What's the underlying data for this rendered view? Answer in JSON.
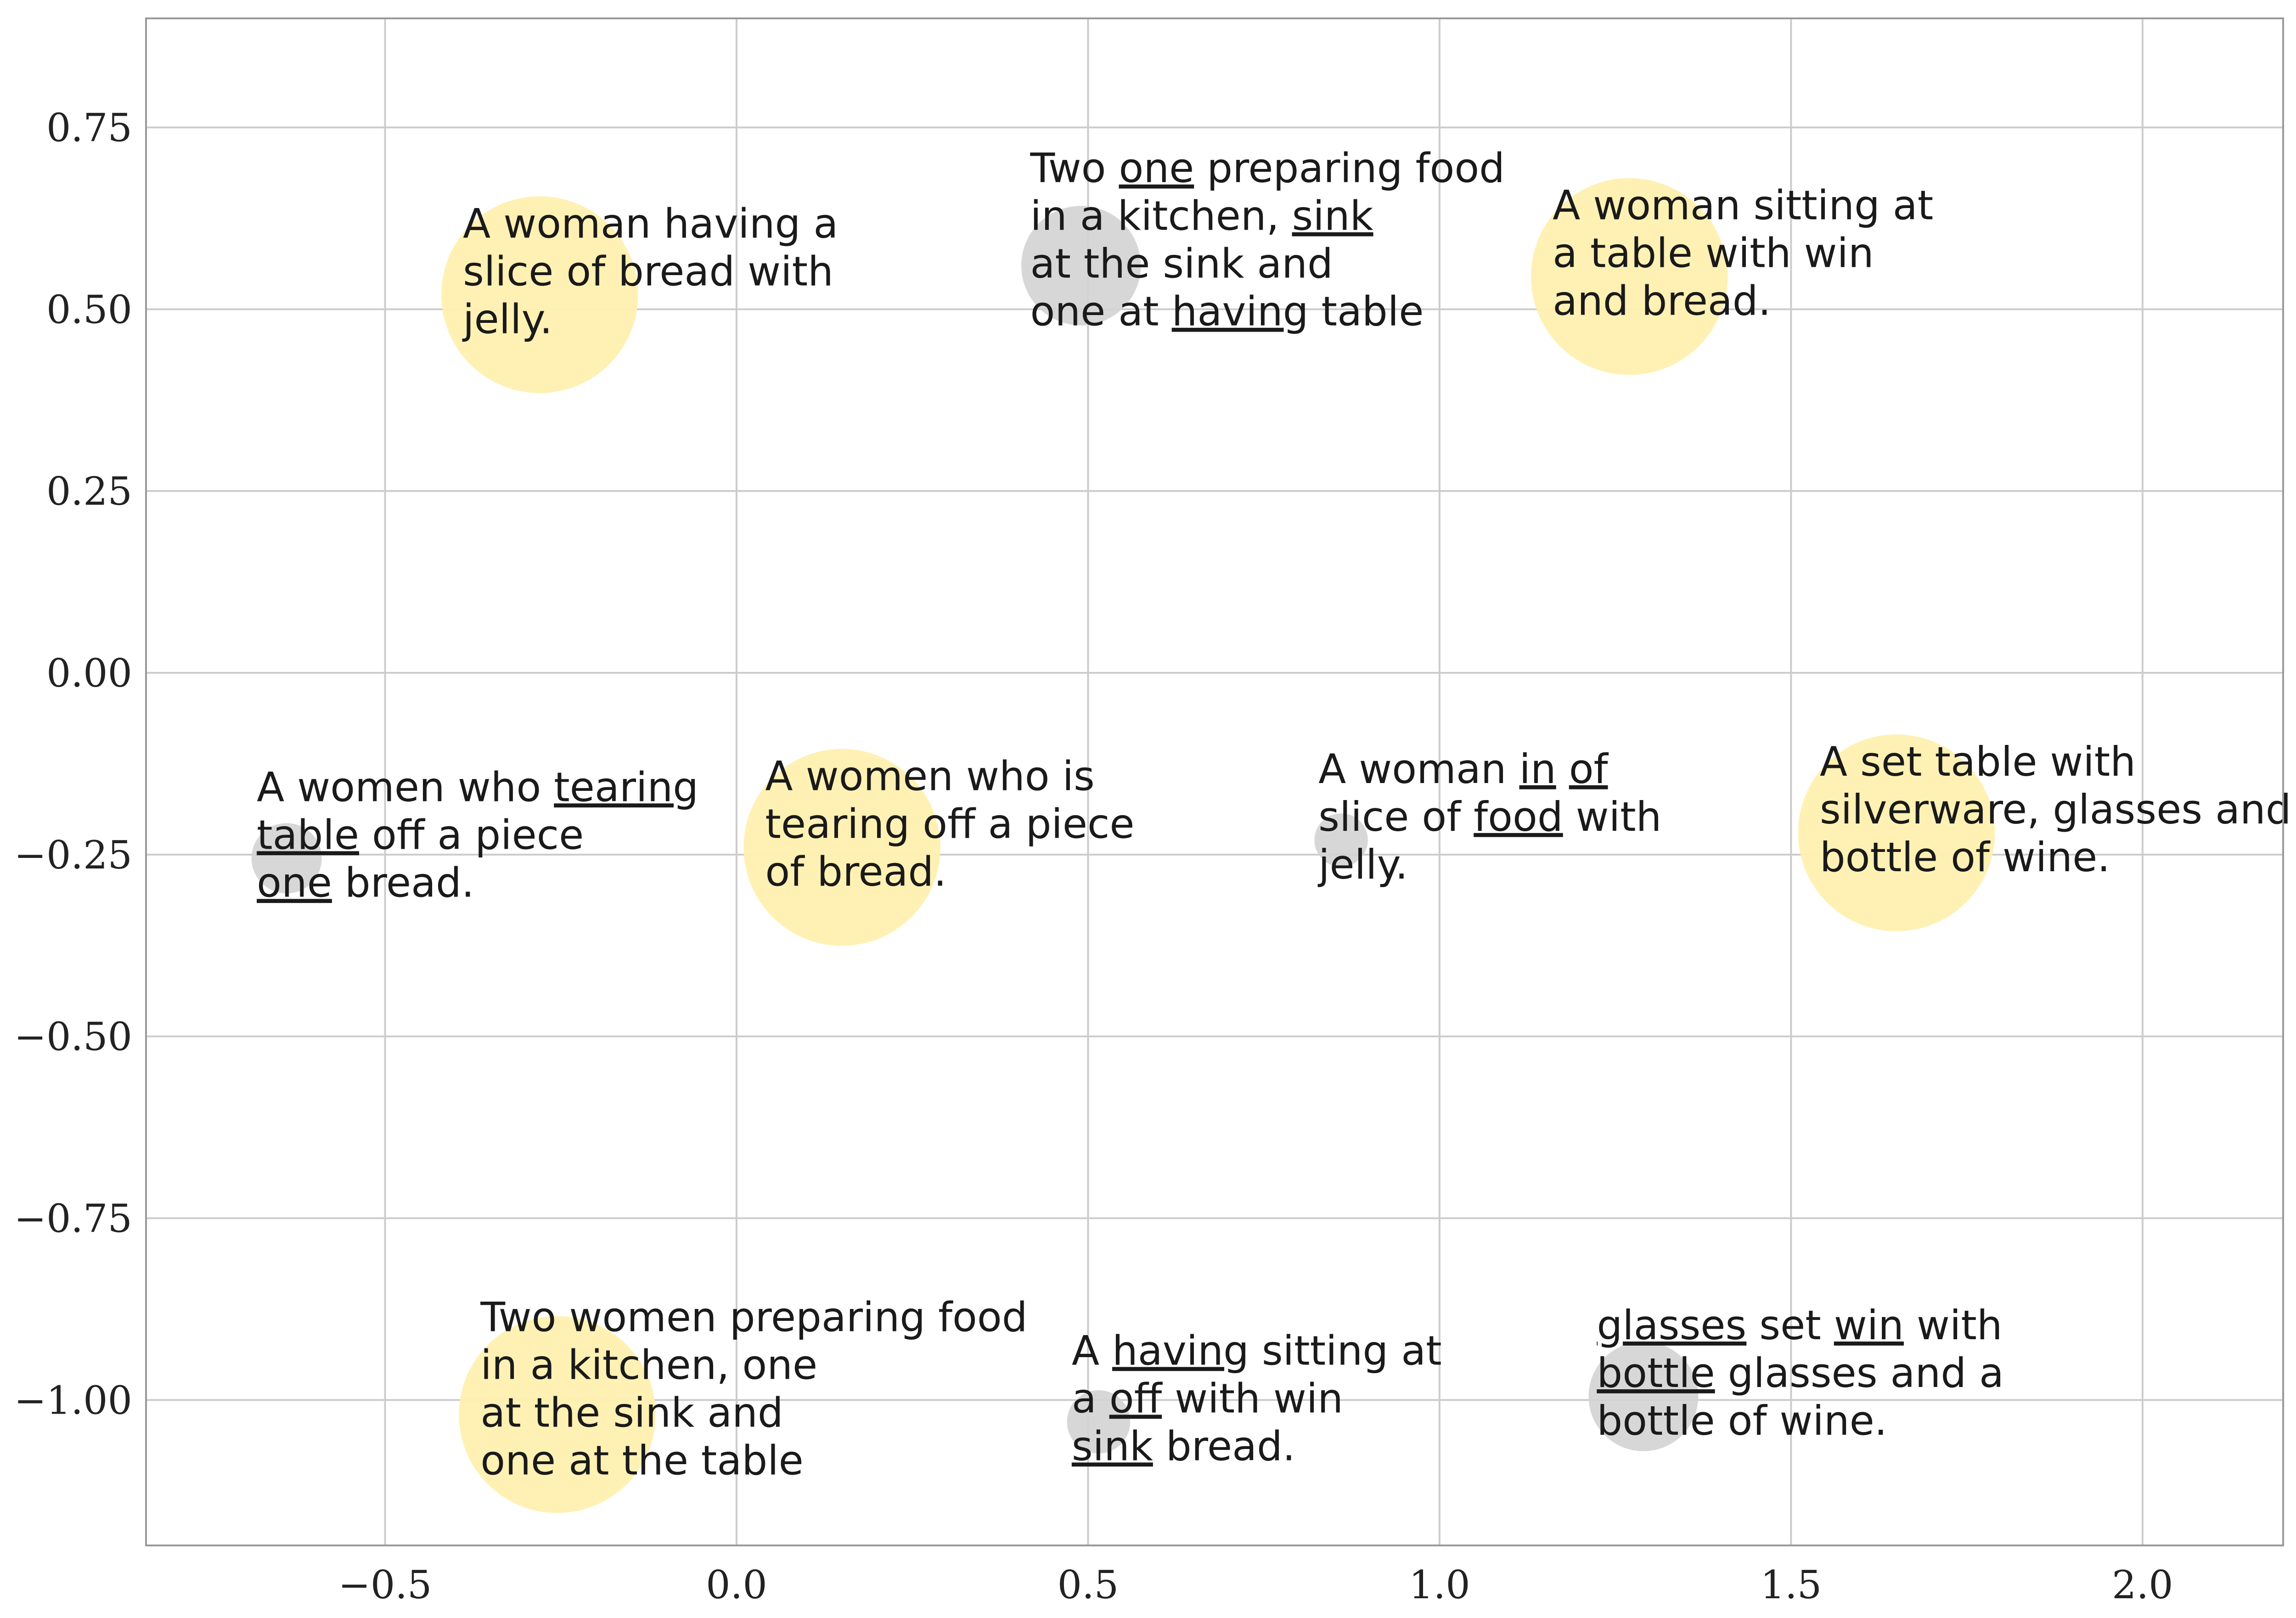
{
  "chart_data": {
    "type": "scatter",
    "title": "",
    "xlabel": "",
    "ylabel": "",
    "xlim": [
      -0.84,
      2.2
    ],
    "ylim": [
      -1.2,
      0.9
    ],
    "grid": true,
    "legend": "none",
    "x_ticks": [
      -0.5,
      0.0,
      0.5,
      1.0,
      1.5,
      2.0
    ],
    "x_tick_labels": [
      "−0.5",
      "0.0",
      "0.5",
      "1.0",
      "1.5",
      "2.0"
    ],
    "y_ticks": [
      -1.0,
      -0.75,
      -0.5,
      -0.25,
      0.0,
      0.25,
      0.5,
      0.75
    ],
    "y_tick_labels": [
      "−1.00",
      "−0.75",
      "−0.50",
      "−0.25",
      "0.00",
      "0.25",
      "0.50",
      "0.75"
    ],
    "colors": {
      "original": "#fff0b0",
      "perturbed": "#d3d3d3",
      "grid": "#cccccc",
      "frame": "#999999"
    },
    "points": [
      {
        "x": -0.28,
        "y": 0.52,
        "r": 0.14,
        "kind": "original",
        "lines": [
          [
            [
              "A woman having a",
              false
            ]
          ],
          [
            [
              "slice of bread with",
              false
            ]
          ],
          [
            [
              "jelly.",
              false
            ]
          ]
        ]
      },
      {
        "x": 0.49,
        "y": 0.56,
        "r": 0.085,
        "kind": "perturbed",
        "lines": [
          [
            [
              "Two ",
              false
            ],
            [
              "one",
              true
            ],
            [
              " preparing food",
              false
            ]
          ],
          [
            [
              "in a kitchen, ",
              false
            ],
            [
              "sink",
              true
            ]
          ],
          [
            [
              "at the sink and",
              false
            ]
          ],
          [
            [
              "one at ",
              false
            ],
            [
              "having",
              true
            ],
            [
              " table",
              false
            ]
          ]
        ]
      },
      {
        "x": 1.27,
        "y": 0.545,
        "r": 0.14,
        "kind": "original",
        "lines": [
          [
            [
              "A woman sitting at",
              false
            ]
          ],
          [
            [
              "a table with win",
              false
            ]
          ],
          [
            [
              "and bread.",
              false
            ]
          ]
        ]
      },
      {
        "x": -0.64,
        "y": -0.255,
        "r": 0.05,
        "kind": "perturbed",
        "lines": [
          [
            [
              "A women who ",
              false
            ],
            [
              "tearing",
              true
            ]
          ],
          [
            [
              "table",
              true
            ],
            [
              " off a piece",
              false
            ]
          ],
          [
            [
              "one",
              true
            ],
            [
              " bread.",
              false
            ]
          ]
        ]
      },
      {
        "x": 0.15,
        "y": -0.24,
        "r": 0.14,
        "kind": "original",
        "lines": [
          [
            [
              "A women who is",
              false
            ]
          ],
          [
            [
              "tearing off a piece",
              false
            ]
          ],
          [
            [
              "of bread.",
              false
            ]
          ]
        ]
      },
      {
        "x": 0.86,
        "y": -0.23,
        "r": 0.038,
        "kind": "perturbed",
        "lines": [
          [
            [
              "A woman ",
              false
            ],
            [
              "in",
              true
            ],
            [
              " ",
              false
            ],
            [
              "of",
              true
            ]
          ],
          [
            [
              "slice of ",
              false
            ],
            [
              "food",
              true
            ],
            [
              " with",
              false
            ]
          ],
          [
            [
              "jelly.",
              false
            ]
          ]
        ]
      },
      {
        "x": 1.65,
        "y": -0.22,
        "r": 0.14,
        "kind": "original",
        "lines": [
          [
            [
              "A set table with",
              false
            ]
          ],
          [
            [
              "silverware, glasses and a",
              false
            ]
          ],
          [
            [
              "bottle of wine.",
              false
            ]
          ]
        ]
      },
      {
        "x": -0.255,
        "y": -1.02,
        "r": 0.14,
        "kind": "original",
        "lines": [
          [
            [
              "Two women preparing food",
              false
            ]
          ],
          [
            [
              "in a kitchen, one",
              false
            ]
          ],
          [
            [
              "at the sink and",
              false
            ]
          ],
          [
            [
              "one at the table",
              false
            ]
          ]
        ]
      },
      {
        "x": 0.515,
        "y": -1.03,
        "r": 0.045,
        "kind": "perturbed",
        "lines": [
          [
            [
              "A ",
              false
            ],
            [
              "having",
              true
            ],
            [
              " sitting at",
              false
            ]
          ],
          [
            [
              "a ",
              false
            ],
            [
              "off",
              true
            ],
            [
              " with win",
              false
            ]
          ],
          [
            [
              "sink",
              true
            ],
            [
              " bread.",
              false
            ]
          ]
        ]
      },
      {
        "x": 1.29,
        "y": -0.995,
        "r": 0.078,
        "kind": "perturbed",
        "lines": [
          [
            [
              "glasses",
              true
            ],
            [
              " set ",
              false
            ],
            [
              "win",
              true
            ],
            [
              " with",
              false
            ]
          ],
          [
            [
              "bottle",
              true
            ],
            [
              " glasses and a",
              false
            ]
          ],
          [
            [
              "bottle of wine.",
              false
            ]
          ]
        ]
      }
    ]
  }
}
